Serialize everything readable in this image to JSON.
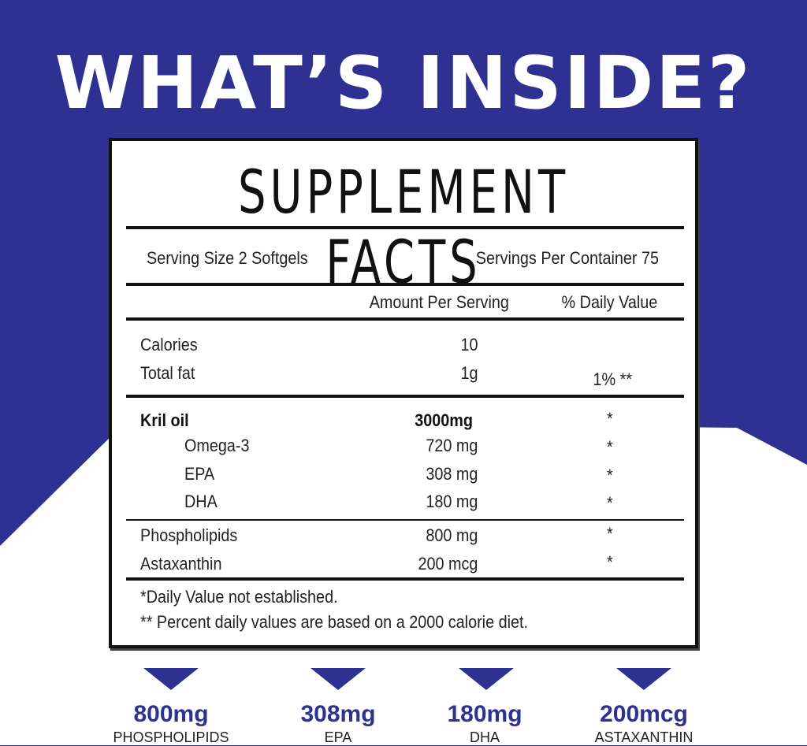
{
  "colors": {
    "brand": "#2e3192",
    "white": "#ffffff"
  },
  "heading": "WHAT’S INSIDE?",
  "facts": {
    "title": "SUPPLEMENT FACTS",
    "serving_size": "Serving Size 2 Softgels",
    "servings_per_container": "Servings Per Container 75",
    "col_amount": "Amount Per Serving",
    "col_dv": "% Daily Value",
    "rows": [
      {
        "name": "Calories",
        "amount": "10",
        "dv": ""
      },
      {
        "name": "Total fat",
        "amount": "1g",
        "dv": "1% **"
      },
      {
        "name": "Kril oil",
        "amount": "3000mg",
        "dv": "*"
      },
      {
        "name": "Omega-3",
        "amount": "720 mg",
        "dv": "*"
      },
      {
        "name": "EPA",
        "amount": "308 mg",
        "dv": "*"
      },
      {
        "name": "DHA",
        "amount": "180 mg",
        "dv": "*"
      },
      {
        "name": "Phospholipids",
        "amount": "800 mg",
        "dv": "*"
      },
      {
        "name": "Astaxanthin",
        "amount": "200 mcg",
        "dv": "*"
      }
    ],
    "footnote1": "*Daily Value not established.",
    "footnote2": "** Percent daily values are based on a 2000 calorie diet."
  },
  "highlights": [
    {
      "value": "800mg",
      "label": "PHOSPHOLIPIDS"
    },
    {
      "value": "308mg",
      "label": "EPA"
    },
    {
      "value": "180mg",
      "label": "DHA"
    },
    {
      "value": "200mcg",
      "label": "ASTAXANTHIN"
    }
  ]
}
